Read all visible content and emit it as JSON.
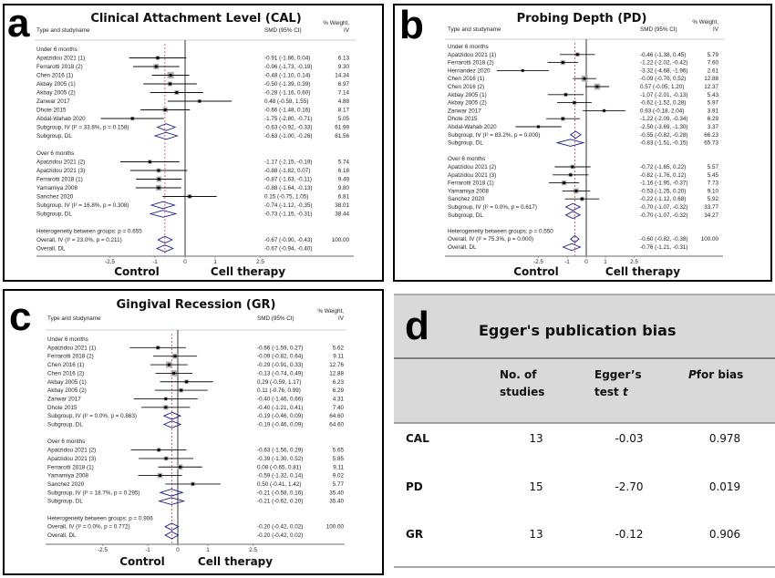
{
  "panels": [
    {
      "letter": "a",
      "title": "Clinical Attachment Level (CAL)",
      "col_study": "Type and studyname",
      "col_smd": "SMD (95% CI)",
      "col_weight_1": "% Weight,",
      "col_weight_2": "IV",
      "rows": [
        {
          "type": "label",
          "name": "Under 6 months"
        },
        {
          "type": "study",
          "name": "Apatzidou 2021 (1)",
          "smd_ci": "-0.91 (-1.86, 0.04)",
          "weight": "6.13"
        },
        {
          "type": "study",
          "name": "Ferrarotti 2018 (2)",
          "smd_ci": "-0.96 (-1.73, -0.19)",
          "weight": "9.30"
        },
        {
          "type": "study",
          "name": "Chen 2016 (1)",
          "smd_ci": "-0.48 (-1.10, 0.14)",
          "weight": "14.34"
        },
        {
          "type": "study",
          "name": "Akbay 2005 (1)",
          "smd_ci": "-0.50 (-1.39, 0.39)",
          "weight": "6.97"
        },
        {
          "type": "study",
          "name": "Akbay 2005 (2)",
          "smd_ci": "-0.28 (-1.16, 0.60)",
          "weight": "7.14"
        },
        {
          "type": "study",
          "name": "Zanwar 2017",
          "smd_ci": "0.48 (-0.58, 1.55)",
          "weight": "4.88"
        },
        {
          "type": "study",
          "name": "Dhote 2015",
          "smd_ci": "-0.66 (-1.48, 0.16)",
          "weight": "8.17"
        },
        {
          "type": "study",
          "name": "Abdal-Wahab 2020",
          "smd_ci": "-1.75 (-2.80, -0.71)",
          "weight": "5.05"
        },
        {
          "type": "diamond",
          "name": "Subgroup, IV (I² = 33.8%, p = 0.158)",
          "smd_ci": "-0.63 (-0.92, -0.33)",
          "weight": "61.99"
        },
        {
          "type": "diamond",
          "name": "Subgroup, DL",
          "smd_ci": "-0.63 (-1.00, -0.26)",
          "weight": "61.56"
        },
        {
          "type": "blank"
        },
        {
          "type": "label",
          "name": "Over 6 months"
        },
        {
          "type": "study",
          "name": "Apatzidou 2021 (2)",
          "smd_ci": "-1.17 (-2.15, -0.19)",
          "weight": "5.74"
        },
        {
          "type": "study",
          "name": "Apatzidou 2021 (3)",
          "smd_ci": "-0.88 (-1.82, 0.07)",
          "weight": "6.18"
        },
        {
          "type": "study",
          "name": "Ferrarotti 2018 (1)",
          "smd_ci": "-0.87 (-1.63, -0.11)",
          "weight": "9.49"
        },
        {
          "type": "study",
          "name": "Yamamiya 2008",
          "smd_ci": "-0.88 (-1.64, -0.13)",
          "weight": "9.80"
        },
        {
          "type": "study",
          "name": "Sanchez 2020",
          "smd_ci": "0.15 (-0.75, 1.05)",
          "weight": "6.81"
        },
        {
          "type": "diamond",
          "name": "Subgroup, IV (I² = 16.8%, p = 0.308)",
          "smd_ci": "-0.74 (-1.12, -0.35)",
          "weight": "38.01"
        },
        {
          "type": "diamond",
          "name": "Subgroup, DL",
          "smd_ci": "-0.73 (-1.15, -0.31)",
          "weight": "38.44"
        },
        {
          "type": "blank"
        },
        {
          "type": "label",
          "name": "Heterogeneity between groups: p = 0.655"
        },
        {
          "type": "diamond",
          "name": "Overall, IV (I² = 23.0%, p = 0.211)",
          "smd_ci": "-0.67 (-0.90, -0.43)",
          "weight": "100.00"
        },
        {
          "type": "diamond",
          "name": "Overall, DL",
          "smd_ci": "-0.67 (-0.94, -0.40)"
        }
      ],
      "overall_estimate": -0.67,
      "ticks": [
        "-2.5",
        "-1",
        "0",
        "1",
        "2.5"
      ],
      "left_label": "Control",
      "right_label": "Cell therapy"
    },
    {
      "letter": "b",
      "title": "Probing Depth (PD)",
      "col_study": "Type and studyname",
      "col_smd": "SMD (95% CI)",
      "col_weight_1": "% Weight,",
      "col_weight_2": "IV",
      "rows": [
        {
          "type": "label",
          "name": "Under 6 months"
        },
        {
          "type": "study",
          "name": "Apatzidou 2021 (1)",
          "smd_ci": "-0.46 (-1.38, 0.45)",
          "weight": "5.79"
        },
        {
          "type": "study",
          "name": "Ferrarotti 2018 (2)",
          "smd_ci": "-1.22 (-2.02, -0.42)",
          "weight": "7.60"
        },
        {
          "type": "study",
          "name": "Hernandez 2020",
          "smd_ci": "-3.32 (-4.68, -1.96)",
          "weight": "2.61"
        },
        {
          "type": "study",
          "name": "Chen 2016 (1)",
          "smd_ci": "-0.09 (-0.70, 0.52)",
          "weight": "12.88"
        },
        {
          "type": "study",
          "name": "Chen 2016 (2)",
          "smd_ci": "0.57 (-0.05, 1.20)",
          "weight": "12.37"
        },
        {
          "type": "study",
          "name": "Akbay 2005 (1)",
          "smd_ci": "-1.07 (-2.01, -0.13)",
          "weight": "5.43"
        },
        {
          "type": "study",
          "name": "Akbay 2005 (2)",
          "smd_ci": "-0.62 (-1.52, 0.28)",
          "weight": "5.97"
        },
        {
          "type": "study",
          "name": "Zanwar 2017",
          "smd_ci": "0.93 (-0.18, 2.04)",
          "weight": "3.91"
        },
        {
          "type": "study",
          "name": "Dhote 2015",
          "smd_ci": "-1.22 (-2.09, -0.34)",
          "weight": "6.29"
        },
        {
          "type": "study",
          "name": "Abdal-Wahab 2020",
          "smd_ci": "-2.50 (-3.69, -1.30)",
          "weight": "3.37"
        },
        {
          "type": "diamond",
          "name": "Subgroup, IV (I² = 83.2%, p = 0.000)",
          "smd_ci": "-0.55 (-0.82, -0.28)",
          "weight": "66.23"
        },
        {
          "type": "diamond",
          "name": "Subgroup, DL",
          "smd_ci": "-0.83 (-1.51, -0.15)",
          "weight": "65.73"
        },
        {
          "type": "blank"
        },
        {
          "type": "label",
          "name": "Over 6 months"
        },
        {
          "type": "study",
          "name": "Apatzidou 2021 (2)",
          "smd_ci": "-0.72 (-1.65, 0.22)",
          "weight": "5.57"
        },
        {
          "type": "study",
          "name": "Apatzidou 2021 (3)",
          "smd_ci": "-0.82 (-1.76, 0.12)",
          "weight": "5.45"
        },
        {
          "type": "study",
          "name": "Ferrarotti 2018 (1)",
          "smd_ci": "-1.16 (-1.95, -0.37)",
          "weight": "7.73"
        },
        {
          "type": "study",
          "name": "Yamamiya 2008",
          "smd_ci": "-0.53 (-1.25, 0.20)",
          "weight": "9.10"
        },
        {
          "type": "study",
          "name": "Sanchez 2020",
          "smd_ci": "-0.22 (-1.12, 0.68)",
          "weight": "5.92"
        },
        {
          "type": "diamond",
          "name": "Subgroup, IV (I² = 0.0%, p = 0.617)",
          "smd_ci": "-0.70 (-1.07, -0.32)",
          "weight": "33.77"
        },
        {
          "type": "diamond",
          "name": "Subgroup, DL",
          "smd_ci": "-0.70 (-1.07, -0.32)",
          "weight": "34.27"
        },
        {
          "type": "blank"
        },
        {
          "type": "label",
          "name": "Heterogeneity between groups: p = 0.550"
        },
        {
          "type": "diamond",
          "name": "Overall, IV (I² = 75.3%, p = 0.000)",
          "smd_ci": "-0.60 (-0.82, -0.38)",
          "weight": "100.00"
        },
        {
          "type": "diamond",
          "name": "Overall, DL",
          "smd_ci": "-0.76 (-1.21, -0.31)"
        }
      ],
      "overall_estimate": -0.6,
      "ticks": [
        "-2.5",
        "-1",
        "0",
        "1",
        "2.5"
      ],
      "left_label": "Control",
      "right_label": "Cell therapy"
    },
    {
      "letter": "c",
      "title": "Gingival Recession (GR)",
      "col_study": "Type and studyname",
      "col_smd": "SMD (95% CI)",
      "col_weight_1": "% Weight,",
      "col_weight_2": "IV",
      "rows": [
        {
          "type": "label",
          "name": "Under 6 months"
        },
        {
          "type": "study",
          "name": "Apatzidou 2021 (1)",
          "smd_ci": "-0.66 (-1.59, 0.27)",
          "weight": "5.62"
        },
        {
          "type": "study",
          "name": "Ferrarotti 2018 (2)",
          "smd_ci": "-0.09 (-0.82, 0.64)",
          "weight": "9.11"
        },
        {
          "type": "study",
          "name": "Chen 2016 (1)",
          "smd_ci": "-0.29 (-0.91, 0.33)",
          "weight": "12.76"
        },
        {
          "type": "study",
          "name": "Chen 2016 (2)",
          "smd_ci": "-0.13 (-0.74, 0.49)",
          "weight": "12.88"
        },
        {
          "type": "study",
          "name": "Akbay 2005 (1)",
          "smd_ci": "0.29 (-0.59, 1.17)",
          "weight": "6.23"
        },
        {
          "type": "study",
          "name": "Akbay 2005 (2)",
          "smd_ci": "0.11 (-0.76, 0.99)",
          "weight": "6.29"
        },
        {
          "type": "study",
          "name": "Zanwar 2017",
          "smd_ci": "-0.40 (-1.46, 0.66)",
          "weight": "4.31"
        },
        {
          "type": "study",
          "name": "Dhote 2015",
          "smd_ci": "-0.40 (-1.21, 0.41)",
          "weight": "7.40"
        },
        {
          "type": "diamond",
          "name": "Subgroup, IV (I² = 0.0%, p = 0.863)",
          "smd_ci": "-0.19 (-0.46, 0.09)",
          "weight": "64.60"
        },
        {
          "type": "diamond",
          "name": "Subgroup, DL",
          "smd_ci": "-0.19 (-0.46, 0.09)",
          "weight": "64.60"
        },
        {
          "type": "blank"
        },
        {
          "type": "label",
          "name": "Over 6 months"
        },
        {
          "type": "study",
          "name": "Apatzidou 2021 (2)",
          "smd_ci": "-0.63 (-1.56, 0.29)",
          "weight": "5.65"
        },
        {
          "type": "study",
          "name": "Apatzidou 2021 (3)",
          "smd_ci": "-0.39 (-1.30, 0.52)",
          "weight": "5.85"
        },
        {
          "type": "study",
          "name": "Ferrarotti 2018 (1)",
          "smd_ci": "0.08 (-0.65, 0.81)",
          "weight": "9.11"
        },
        {
          "type": "study",
          "name": "Yamamiya 2008",
          "smd_ci": "-0.59 (-1.32, 0.14)",
          "weight": "9.02"
        },
        {
          "type": "study",
          "name": "Sanchez 2020",
          "smd_ci": "0.50 (-0.41, 1.42)",
          "weight": "5.77"
        },
        {
          "type": "diamond",
          "name": "Subgroup, IV (I² = 18.7%, p = 0.295)",
          "smd_ci": "-0.21 (-0.58, 0.16)",
          "weight": "35.40"
        },
        {
          "type": "diamond",
          "name": "Subgroup, DL",
          "smd_ci": "-0.21 (-0.62, 0.20)",
          "weight": "35.40"
        },
        {
          "type": "blank"
        },
        {
          "type": "label",
          "name": "Heterogeneity between groups: p = 0.906"
        },
        {
          "type": "diamond",
          "name": "Overall, IV (I² = 0.0%, p = 0.772)",
          "smd_ci": "-0.20 (-0.42, 0.02)",
          "weight": "100.00"
        },
        {
          "type": "diamond",
          "name": "Overall, DL",
          "smd_ci": "-0.20 (-0.42, 0.02)"
        }
      ],
      "overall_estimate": -0.2,
      "ticks": [
        "-2.5",
        "-1",
        "0",
        "1",
        "2.5"
      ],
      "left_label": "Control",
      "right_label": "Cell therapy"
    }
  ],
  "table": {
    "letter": "d",
    "title": "Egger's publication bias",
    "headers": [
      [
        "No. of",
        "studies"
      ],
      [
        "Egger’s",
        "test "
      ],
      [
        "",
        "for bias"
      ]
    ],
    "header_italic": [
      "",
      "t",
      "P"
    ],
    "rows": [
      {
        "label": "CAL",
        "n": "13",
        "t": "-0.03",
        "p": "0.978"
      },
      {
        "label": "PD",
        "n": "15",
        "t": "-2.70",
        "p": "0.019"
      },
      {
        "label": "GR",
        "n": "13",
        "t": "-0.12",
        "p": "0.906"
      }
    ]
  },
  "chart_data": [
    {
      "type": "forest",
      "title": "Clinical Attachment Level (CAL)",
      "xlabel_left": "Control",
      "xlabel_right": "Cell therapy",
      "xticks": [
        -2.5,
        -1,
        0,
        1,
        2.5
      ]
    },
    {
      "type": "forest",
      "title": "Probing Depth (PD)",
      "xlabel_left": "Control",
      "xlabel_right": "Cell therapy",
      "xticks": [
        -2.5,
        -1,
        0,
        1,
        2.5
      ]
    },
    {
      "type": "forest",
      "title": "Gingival Recession (GR)",
      "xlabel_left": "Control",
      "xlabel_right": "Cell therapy",
      "xticks": [
        -2.5,
        -1,
        0,
        1,
        2.5
      ]
    }
  ],
  "colors": {
    "diamond": "#1a1a8c",
    "dashed": "#d04050",
    "box": "#b0b0b0",
    "table_header": "#d9d9d9"
  }
}
